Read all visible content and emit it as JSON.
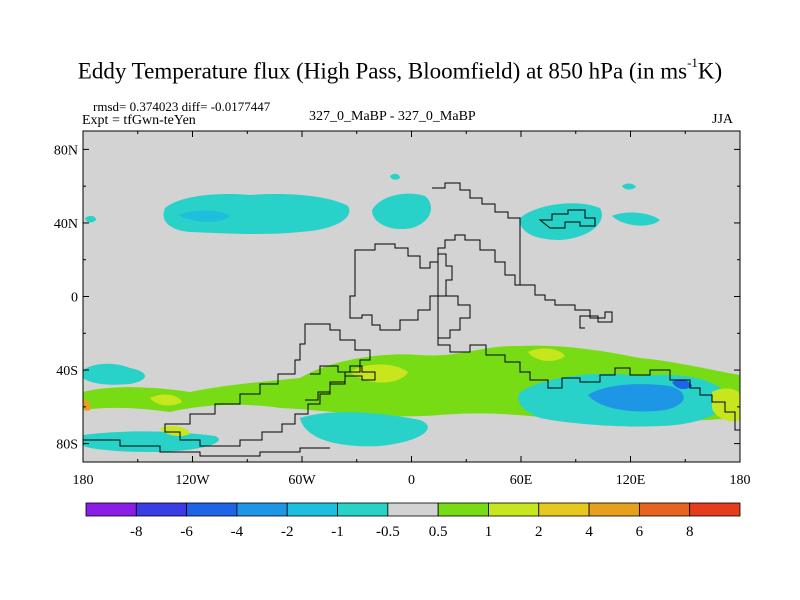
{
  "title": {
    "text": "Eddy Temperature flux (High Pass, Bloomfield) at 850 hPa (in ms",
    "superscript": "-1",
    "suffix": "K)"
  },
  "stats": "rmsd= 0.374023 diff= -0.0177447",
  "experiment": "Expt = tfGwn-teYen",
  "comparison": "327_0_MaBP - 327_0_MaBP",
  "season": "JJA",
  "map": {
    "background_color": "#d3d3d3",
    "lat_ticks": [
      {
        "label": "80N",
        "lat": 80
      },
      {
        "label": "40N",
        "lat": 40
      },
      {
        "label": "0",
        "lat": 0
      },
      {
        "label": "40S",
        "lat": -40
      },
      {
        "label": "80S",
        "lat": -80
      }
    ],
    "lon_ticks": [
      {
        "label": "180",
        "lon": -180
      },
      {
        "label": "120W",
        "lon": -120
      },
      {
        "label": "60W",
        "lon": -60
      },
      {
        "label": "0",
        "lon": 0
      },
      {
        "label": "60E",
        "lon": 60
      },
      {
        "label": "120E",
        "lon": 120
      },
      {
        "label": "180",
        "lon": 180
      }
    ]
  },
  "colorbar": {
    "colors": [
      "#8a1ee6",
      "#3c3ce6",
      "#1e64e6",
      "#1e96e6",
      "#1ebede",
      "#28d2c8",
      "#d3d3d3",
      "#78dc14",
      "#c8e61e",
      "#e6c81e",
      "#e6a01e",
      "#e6641e",
      "#e63c1e"
    ],
    "labels": [
      "-8",
      "-6",
      "-4",
      "-2",
      "-1",
      "-0.5",
      "0.5",
      "1",
      "2",
      "4",
      "6",
      "8"
    ]
  }
}
